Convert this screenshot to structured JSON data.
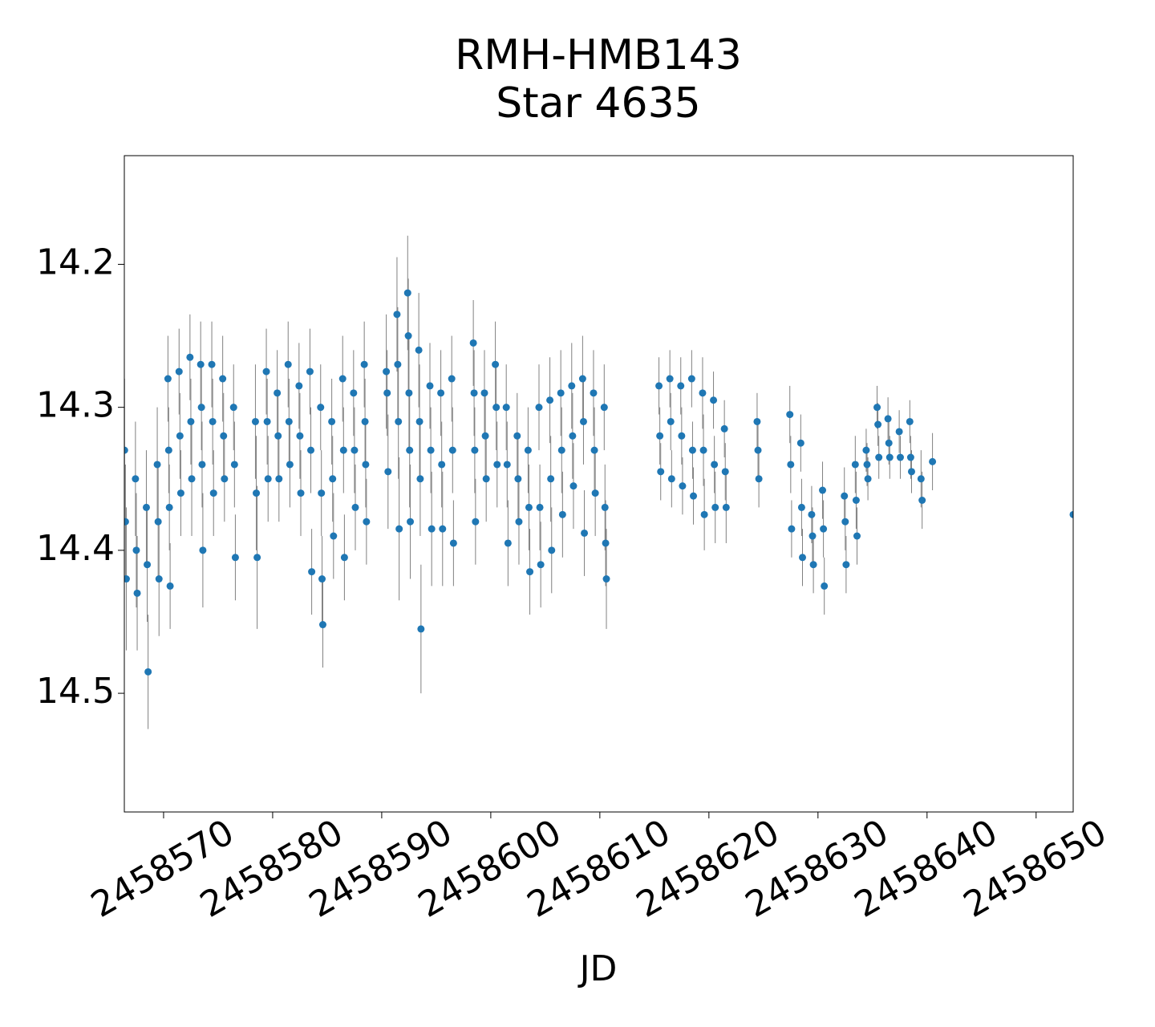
{
  "chart_data": {
    "type": "scatter",
    "title": "RMH-HMB143",
    "subtitle": "Star 4635",
    "x_label": "JD",
    "color": "#1f77b4",
    "error_color": "#808080",
    "invert_y": true,
    "grid": false,
    "xlim": [
      2458566.4,
      2458653.4
    ],
    "xticks": [
      2458570,
      2458580,
      2458590,
      2458600,
      2458610,
      2458620,
      2458630,
      2458640,
      2458650
    ],
    "ylim": [
      14.124,
      14.583
    ],
    "yticks": [
      14.2,
      14.3,
      14.4,
      14.5
    ],
    "x": [
      2458566.42,
      2458566.5,
      2458566.58,
      2458567.42,
      2458567.5,
      2458567.58,
      2458568.42,
      2458568.5,
      2458568.58,
      2458569.42,
      2458569.5,
      2458569.58,
      2458570.4,
      2458570.47,
      2458570.53,
      2458570.6,
      2458571.42,
      2458571.5,
      2458571.58,
      2458572.42,
      2458572.5,
      2458572.58,
      2458573.4,
      2458573.47,
      2458573.53,
      2458573.6,
      2458574.42,
      2458574.5,
      2458574.58,
      2458575.42,
      2458575.5,
      2458575.58,
      2458576.42,
      2458576.5,
      2458576.58,
      2458578.42,
      2458578.5,
      2458578.58,
      2458579.42,
      2458579.5,
      2458579.58,
      2458580.42,
      2458580.5,
      2458580.58,
      2458581.42,
      2458581.5,
      2458581.58,
      2458582.42,
      2458582.5,
      2458582.58,
      2458583.42,
      2458583.5,
      2458583.58,
      2458584.4,
      2458584.47,
      2458584.53,
      2458584.6,
      2458585.42,
      2458585.5,
      2458585.58,
      2458586.42,
      2458586.5,
      2458586.58,
      2458587.42,
      2458587.5,
      2458587.58,
      2458588.4,
      2458588.47,
      2458588.53,
      2458588.6,
      2458590.42,
      2458590.5,
      2458590.58,
      2458591.4,
      2458591.47,
      2458591.53,
      2458591.6,
      2458592.38,
      2458592.44,
      2458592.5,
      2458592.56,
      2458592.62,
      2458593.4,
      2458593.47,
      2458593.53,
      2458593.6,
      2458594.42,
      2458594.5,
      2458594.58,
      2458595.42,
      2458595.5,
      2458595.58,
      2458596.42,
      2458596.5,
      2458596.58,
      2458598.4,
      2458598.47,
      2458598.53,
      2458598.6,
      2458599.42,
      2458599.5,
      2458599.58,
      2458600.42,
      2458600.5,
      2458600.58,
      2458601.42,
      2458601.5,
      2458601.58,
      2458602.42,
      2458602.5,
      2458602.58,
      2458603.42,
      2458603.5,
      2458603.58,
      2458604.42,
      2458604.5,
      2458604.58,
      2458605.42,
      2458605.5,
      2458605.58,
      2458606.42,
      2458606.5,
      2458606.58,
      2458607.42,
      2458607.5,
      2458607.58,
      2458608.42,
      2458608.5,
      2458608.58,
      2458609.42,
      2458609.5,
      2458609.58,
      2458610.4,
      2458610.47,
      2458610.53,
      2458610.6,
      2458615.42,
      2458615.5,
      2458615.58,
      2458616.42,
      2458616.5,
      2458616.58,
      2458617.42,
      2458617.5,
      2458617.58,
      2458618.42,
      2458618.5,
      2458618.58,
      2458619.42,
      2458619.5,
      2458619.58,
      2458620.42,
      2458620.5,
      2458620.58,
      2458621.42,
      2458621.5,
      2458621.58,
      2458624.42,
      2458624.5,
      2458624.58,
      2458627.42,
      2458627.5,
      2458627.58,
      2458628.42,
      2458628.5,
      2458628.58,
      2458629.42,
      2458629.5,
      2458629.58,
      2458630.42,
      2458630.5,
      2458630.58,
      2458632.42,
      2458632.5,
      2458632.58,
      2458633.42,
      2458633.5,
      2458633.58,
      2458634.42,
      2458634.5,
      2458634.58,
      2458635.42,
      2458635.5,
      2458635.58,
      2458636.42,
      2458636.5,
      2458636.58,
      2458637.45,
      2458637.55,
      2458638.42,
      2458638.5,
      2458638.58,
      2458639.45,
      2458639.55,
      2458640.5,
      2458653.4
    ],
    "values": [
      14.33,
      14.38,
      14.42,
      14.35,
      14.4,
      14.43,
      14.37,
      14.41,
      14.485,
      14.34,
      14.38,
      14.42,
      14.28,
      14.33,
      14.37,
      14.425,
      14.275,
      14.32,
      14.36,
      14.265,
      14.31,
      14.35,
      14.27,
      14.3,
      14.34,
      14.4,
      14.27,
      14.31,
      14.36,
      14.28,
      14.32,
      14.35,
      14.3,
      14.34,
      14.405,
      14.31,
      14.36,
      14.405,
      14.275,
      14.31,
      14.35,
      14.29,
      14.32,
      14.35,
      14.27,
      14.31,
      14.34,
      14.285,
      14.32,
      14.36,
      14.275,
      14.33,
      14.415,
      14.3,
      14.36,
      14.42,
      14.452,
      14.31,
      14.35,
      14.39,
      14.28,
      14.33,
      14.405,
      14.29,
      14.33,
      14.37,
      14.27,
      14.31,
      14.34,
      14.38,
      14.275,
      14.29,
      14.345,
      14.235,
      14.27,
      14.31,
      14.385,
      14.22,
      14.25,
      14.29,
      14.33,
      14.38,
      14.26,
      14.31,
      14.35,
      14.455,
      14.285,
      14.33,
      14.385,
      14.29,
      14.34,
      14.385,
      14.28,
      14.33,
      14.395,
      14.255,
      14.29,
      14.33,
      14.38,
      14.29,
      14.32,
      14.35,
      14.27,
      14.3,
      14.34,
      14.3,
      14.34,
      14.395,
      14.32,
      14.35,
      14.38,
      14.33,
      14.37,
      14.415,
      14.3,
      14.37,
      14.41,
      14.295,
      14.35,
      14.4,
      14.29,
      14.33,
      14.375,
      14.285,
      14.32,
      14.355,
      14.28,
      14.31,
      14.388,
      14.29,
      14.33,
      14.36,
      14.3,
      14.37,
      14.395,
      14.42,
      14.285,
      14.32,
      14.345,
      14.28,
      14.31,
      14.35,
      14.285,
      14.32,
      14.355,
      14.28,
      14.33,
      14.362,
      14.29,
      14.33,
      14.375,
      14.295,
      14.34,
      14.37,
      14.315,
      14.345,
      14.37,
      14.31,
      14.33,
      14.35,
      14.305,
      14.34,
      14.385,
      14.325,
      14.37,
      14.405,
      14.375,
      14.39,
      14.41,
      14.358,
      14.385,
      14.425,
      14.362,
      14.38,
      14.41,
      14.34,
      14.365,
      14.39,
      14.33,
      14.34,
      14.35,
      14.3,
      14.312,
      14.335,
      14.308,
      14.325,
      14.335,
      14.317,
      14.335,
      14.31,
      14.335,
      14.345,
      14.35,
      14.365,
      14.338,
      14.375
    ],
    "errors": [
      0.05,
      0.04,
      0.05,
      0.04,
      0.04,
      0.04,
      0.04,
      0.04,
      0.04,
      0.04,
      0.04,
      0.04,
      0.03,
      0.03,
      0.03,
      0.03,
      0.03,
      0.03,
      0.03,
      0.03,
      0.03,
      0.04,
      0.03,
      0.03,
      0.03,
      0.04,
      0.03,
      0.03,
      0.03,
      0.03,
      0.03,
      0.03,
      0.03,
      0.03,
      0.03,
      0.04,
      0.04,
      0.05,
      0.03,
      0.03,
      0.03,
      0.03,
      0.03,
      0.03,
      0.03,
      0.03,
      0.03,
      0.03,
      0.03,
      0.03,
      0.03,
      0.03,
      0.03,
      0.03,
      0.03,
      0.03,
      0.03,
      0.03,
      0.03,
      0.03,
      0.03,
      0.03,
      0.03,
      0.03,
      0.03,
      0.03,
      0.03,
      0.03,
      0.03,
      0.03,
      0.04,
      0.03,
      0.04,
      0.04,
      0.04,
      0.04,
      0.05,
      0.04,
      0.04,
      0.04,
      0.04,
      0.04,
      0.04,
      0.04,
      0.04,
      0.045,
      0.03,
      0.03,
      0.04,
      0.03,
      0.03,
      0.04,
      0.03,
      0.03,
      0.03,
      0.03,
      0.03,
      0.03,
      0.03,
      0.03,
      0.03,
      0.03,
      0.03,
      0.03,
      0.03,
      0.03,
      0.03,
      0.03,
      0.03,
      0.03,
      0.03,
      0.03,
      0.03,
      0.03,
      0.03,
      0.03,
      0.03,
      0.03,
      0.03,
      0.03,
      0.03,
      0.03,
      0.03,
      0.03,
      0.03,
      0.03,
      0.03,
      0.03,
      0.03,
      0.03,
      0.03,
      0.03,
      0.03,
      0.03,
      0.03,
      0.035,
      0.02,
      0.02,
      0.02,
      0.02,
      0.02,
      0.02,
      0.02,
      0.02,
      0.02,
      0.02,
      0.02,
      0.02,
      0.025,
      0.025,
      0.025,
      0.02,
      0.02,
      0.025,
      0.02,
      0.02,
      0.025,
      0.02,
      0.02,
      0.02,
      0.02,
      0.02,
      0.02,
      0.02,
      0.02,
      0.02,
      0.02,
      0.02,
      0.02,
      0.02,
      0.02,
      0.02,
      0.02,
      0.02,
      0.02,
      0.02,
      0.02,
      0.02,
      0.015,
      0.015,
      0.015,
      0.015,
      0.015,
      0.015,
      0.015,
      0.015,
      0.015,
      0.015,
      0.015,
      0.015,
      0.015,
      0.015,
      0.02,
      0.02,
      0.02,
      0.02
    ]
  }
}
